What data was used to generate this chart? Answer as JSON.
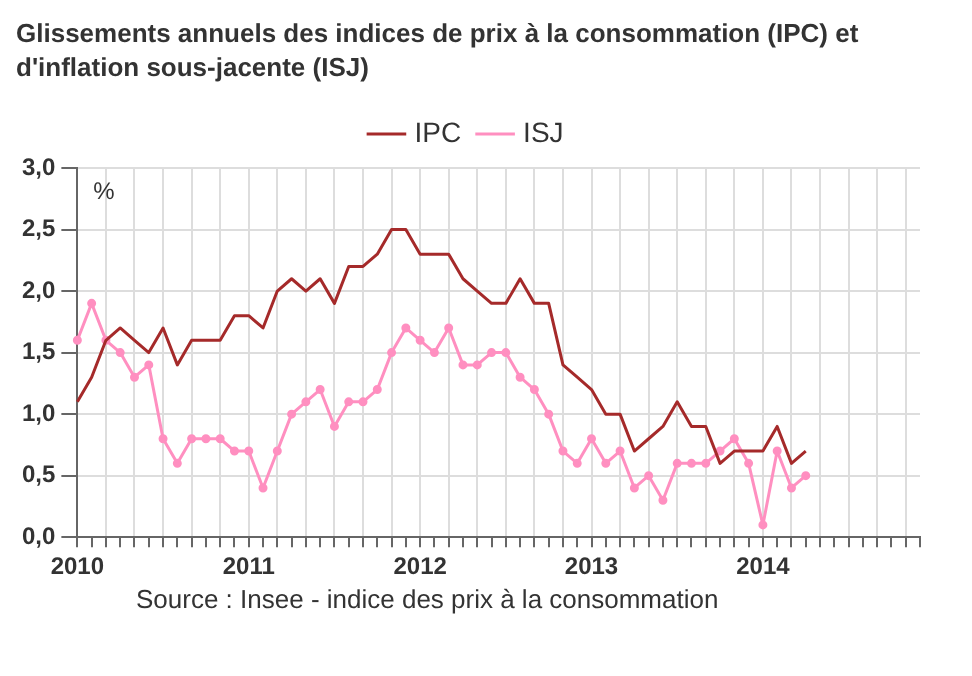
{
  "chart_data": {
    "type": "line",
    "title": "Glissements annuels des indices de prix à la consommation (IPC) et d'inflation sous-jacente (ISJ)",
    "ylabel": "%",
    "categories": [
      "2010",
      null,
      null,
      null,
      null,
      null,
      null,
      null,
      null,
      null,
      null,
      null,
      "2011",
      null,
      null,
      null,
      null,
      null,
      null,
      null,
      null,
      null,
      null,
      null,
      "2012",
      null,
      null,
      null,
      null,
      null,
      null,
      null,
      null,
      null,
      null,
      null,
      "2013",
      null,
      null,
      null,
      null,
      null,
      null,
      null,
      null,
      null,
      null,
      null,
      "2014",
      null,
      null,
      null,
      null,
      null,
      null,
      null,
      null,
      null,
      null,
      null
    ],
    "series": [
      {
        "name": "IPC",
        "color": "#a52a2a",
        "marker": "none",
        "values": [
          1.1,
          1.3,
          1.6,
          1.7,
          1.6,
          1.5,
          1.7,
          1.4,
          1.6,
          1.6,
          1.6,
          1.8,
          1.8,
          1.7,
          2.0,
          2.1,
          2.0,
          2.1,
          1.9,
          2.2,
          2.2,
          2.3,
          2.5,
          2.5,
          2.3,
          2.3,
          2.3,
          2.1,
          2.0,
          1.9,
          1.9,
          2.1,
          1.9,
          1.9,
          1.4,
          1.3,
          1.2,
          1.0,
          1.0,
          0.7,
          0.8,
          0.9,
          1.1,
          0.9,
          0.9,
          0.6,
          0.7,
          0.7,
          0.7,
          0.9,
          0.6,
          0.7,
          null,
          null,
          null,
          null,
          null,
          null,
          null,
          null
        ]
      },
      {
        "name": "ISJ",
        "color": "#ff8fc0",
        "marker": "circle",
        "values": [
          1.6,
          1.9,
          1.6,
          1.5,
          1.3,
          1.4,
          0.8,
          0.6,
          0.8,
          0.8,
          0.8,
          0.7,
          0.7,
          0.4,
          0.7,
          1.0,
          1.1,
          1.2,
          0.9,
          1.1,
          1.1,
          1.2,
          1.5,
          1.7,
          1.6,
          1.5,
          1.7,
          1.4,
          1.4,
          1.5,
          1.5,
          1.3,
          1.2,
          1.0,
          0.7,
          0.6,
          0.8,
          0.6,
          0.7,
          0.4,
          0.5,
          0.3,
          0.6,
          0.6,
          0.6,
          0.7,
          0.8,
          0.6,
          0.1,
          0.7,
          0.4,
          0.5,
          null,
          null,
          null,
          null,
          null,
          null,
          null,
          null
        ]
      }
    ],
    "ylim": [
      0,
      3
    ],
    "yticks": [
      {
        "value": 0,
        "label": "0,0"
      },
      {
        "value": 0.5,
        "label": "0,5"
      },
      {
        "value": 1,
        "label": "1,0"
      },
      {
        "value": 1.5,
        "label": "1,5"
      },
      {
        "value": 2,
        "label": "2,0"
      },
      {
        "value": 2.5,
        "label": "2,5"
      },
      {
        "value": 3,
        "label": "3,0"
      }
    ],
    "grid": true,
    "legend": "top",
    "annotations": [
      "Source : Insee - indice des prix à la consommation"
    ]
  }
}
